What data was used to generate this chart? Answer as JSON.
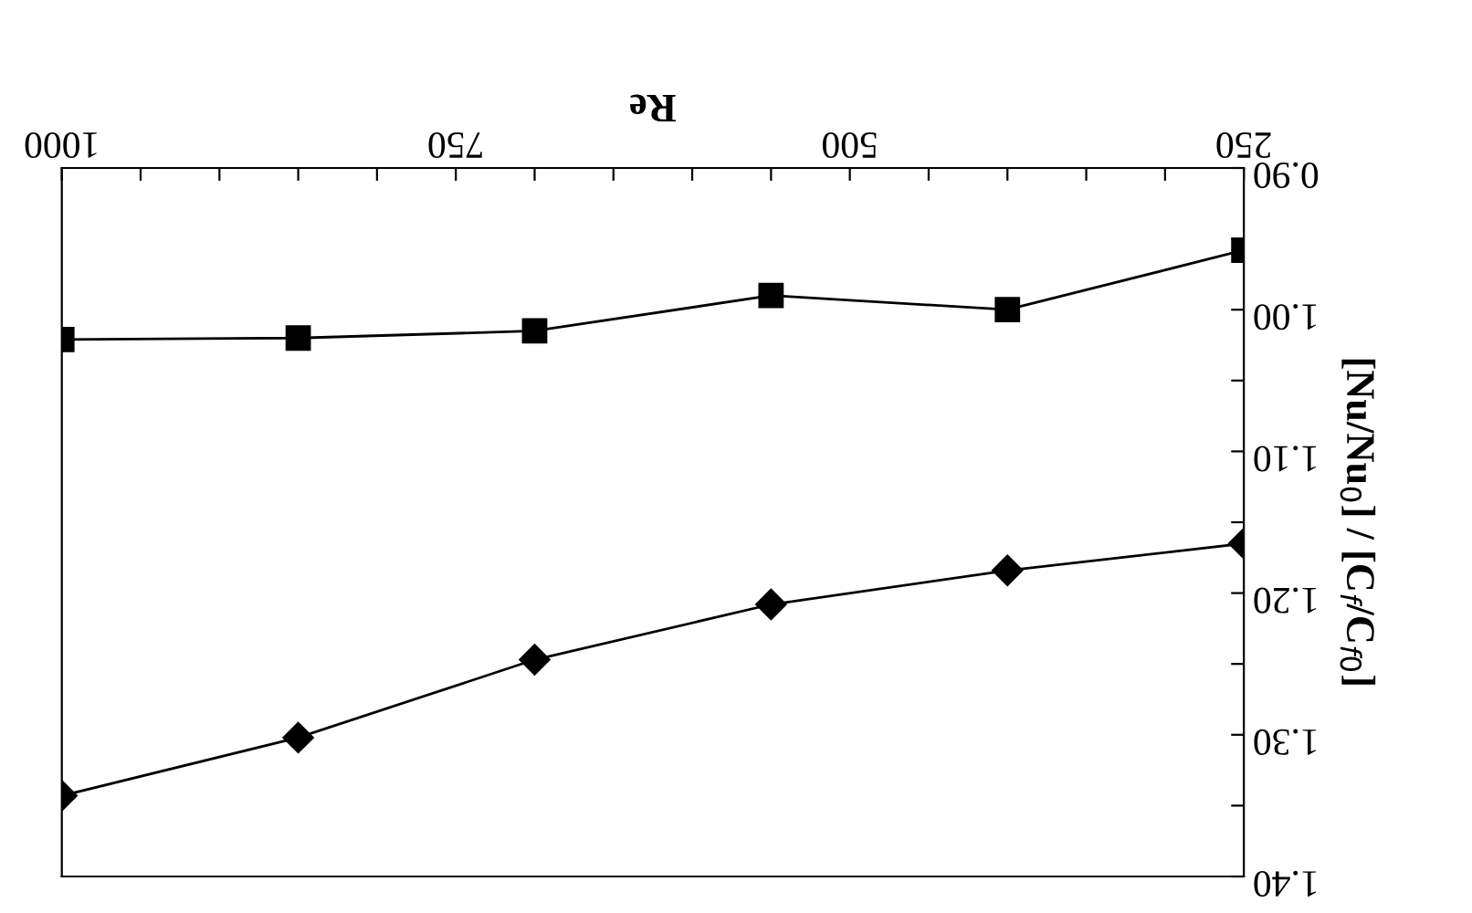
{
  "chart_data": {
    "type": "line",
    "xlabel": "Re",
    "ylabel": "[Nu/Nu$_{0}$] / [C$_{f}$/C$_{f0}$]",
    "x": [
      250,
      400,
      550,
      700,
      850,
      1000
    ],
    "series": [
      {
        "color": "#000000",
        "marker": "square",
        "values": [
          0.958,
          1.0,
          0.99,
          1.015,
          1.02,
          1.021
        ]
      },
      {
        "color": "#000000",
        "marker": "diamond",
        "values": [
          1.165,
          1.184,
          1.208,
          1.247,
          1.302,
          1.343
        ]
      }
    ],
    "xlim": [
      1000,
      250
    ],
    "ylim": [
      1.4,
      0.9
    ],
    "xticks": [
      {
        "value": 1000,
        "label": "1000"
      },
      {
        "value": 950,
        "label": null
      },
      {
        "value": 900,
        "label": null
      },
      {
        "value": 850,
        "label": null
      },
      {
        "value": 800,
        "label": null
      },
      {
        "value": 750,
        "label": "750"
      },
      {
        "value": 700,
        "label": null
      },
      {
        "value": 650,
        "label": null
      },
      {
        "value": 600,
        "label": null
      },
      {
        "value": 550,
        "label": null
      },
      {
        "value": 500,
        "label": "500"
      },
      {
        "value": 450,
        "label": null
      },
      {
        "value": 400,
        "label": null
      },
      {
        "value": 350,
        "label": null
      },
      {
        "value": 300,
        "label": null
      },
      {
        "value": 250,
        "label": "250"
      }
    ],
    "yticks": [
      {
        "value": 0.9,
        "label": "0.90"
      },
      {
        "value": 0.95,
        "label": null
      },
      {
        "value": 1.0,
        "label": "1.00"
      },
      {
        "value": 1.05,
        "label": null
      },
      {
        "value": 1.1,
        "label": "1.10"
      },
      {
        "value": 1.15,
        "label": null
      },
      {
        "value": 1.2,
        "label": "1.20"
      },
      {
        "value": 1.25,
        "label": null
      },
      {
        "value": 1.3,
        "label": "1.30"
      },
      {
        "value": 1.35,
        "label": null
      },
      {
        "value": 1.4,
        "label": "1.40"
      }
    ],
    "grid": false,
    "legend": false,
    "line_style": "solid"
  }
}
